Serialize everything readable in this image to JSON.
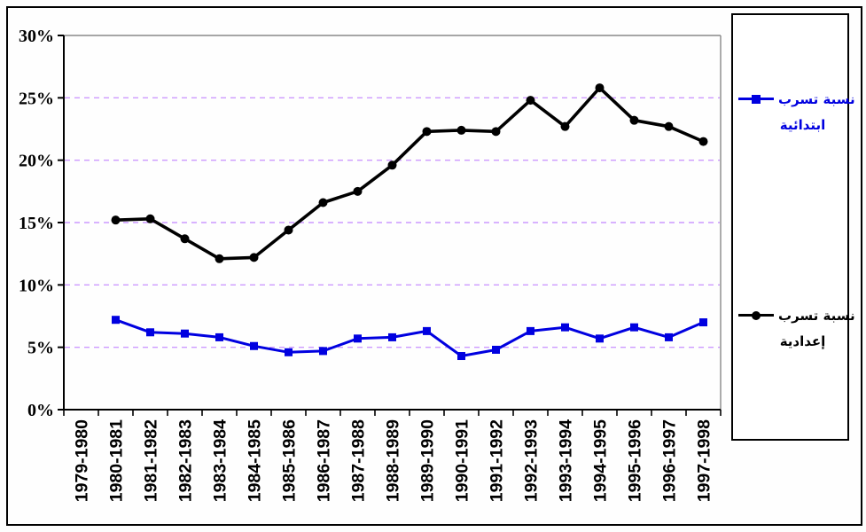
{
  "chart_data": {
    "type": "line",
    "title": "",
    "xlabel": "",
    "ylabel": "",
    "categories": [
      "1979-1980",
      "1980-1981",
      "1981-1982",
      "1982-1983",
      "1983-1984",
      "1984-1985",
      "1985-1986",
      "1986-1987",
      "1987-1988",
      "1988-1989",
      "1989-1990",
      "1990-1991",
      "1991-1992",
      "1992-1993",
      "1993-1994",
      "1994-1995",
      "1995-1996",
      "1996-1997",
      "1997-1998"
    ],
    "series": [
      {
        "name": "نسبة تسرب ابتدائية",
        "color": "#0000e0",
        "marker": "square",
        "values": [
          null,
          7.2,
          6.2,
          6.1,
          5.8,
          5.1,
          4.6,
          4.7,
          5.7,
          5.8,
          6.3,
          4.3,
          4.8,
          6.3,
          6.6,
          5.7,
          6.6,
          5.8,
          7.0
        ]
      },
      {
        "name": "نسبة تسرب إعدادية",
        "color": "#000000",
        "marker": "circle",
        "values": [
          null,
          15.2,
          15.3,
          13.7,
          12.1,
          12.2,
          14.4,
          16.6,
          17.5,
          19.6,
          22.3,
          22.4,
          22.3,
          24.8,
          22.7,
          25.8,
          23.2,
          22.7,
          21.5
        ]
      }
    ],
    "ylim": [
      0,
      30
    ],
    "ytick_step": 5,
    "ytick_labels": [
      "0%",
      "5%",
      "10%",
      "15%",
      "20%",
      "25%",
      "30%"
    ],
    "grid": "horizontal-dashed",
    "legend_position": "right"
  },
  "legend": {
    "entries": [
      {
        "label_line1": "نسبة تسرب",
        "label_line2": "ابتدائية",
        "color": "#0000e0",
        "marker": "square"
      },
      {
        "label_line1": "نسبة تسرب",
        "label_line2": "إعدادية",
        "color": "#000000",
        "marker": "circle"
      }
    ]
  },
  "colors": {
    "gridline": "#cc99ff",
    "plot_border_top_right": "#888888",
    "axis": "#000000",
    "background": "#fefefe",
    "series_primary_blue": "#0000e0",
    "series_preparatory_black": "#000000"
  }
}
